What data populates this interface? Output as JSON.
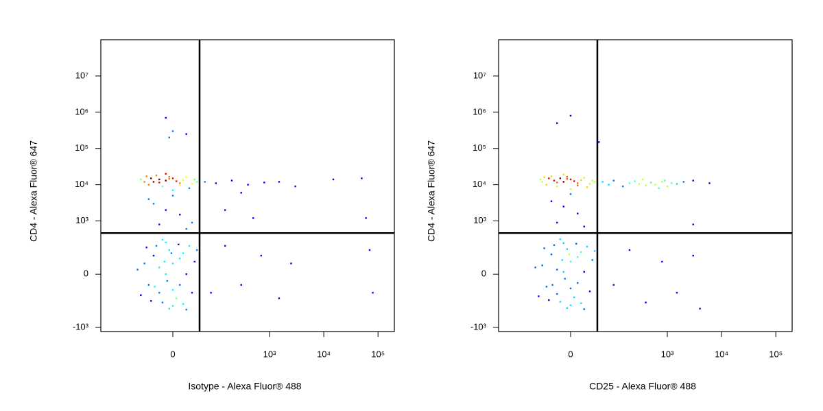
{
  "chart_data": [
    {
      "type": "scatter",
      "xlabel": "Isotype - Alexa Fluor® 488",
      "ylabel": "CD4 - Alexa Fluor® 647",
      "xscale": "biexponential",
      "yscale": "biexponential",
      "xlim": [
        -350,
        200000
      ],
      "ylim": [
        -1300,
        100000000
      ],
      "xticks": [
        0,
        {
          "value": 1000,
          "label": "10³"
        },
        {
          "value": 10000,
          "label": "10⁴"
        },
        {
          "value": 100000,
          "label": "10⁵"
        }
      ],
      "yticks": [
        {
          "value": -1000,
          "label": "-10³"
        },
        0,
        {
          "value": 1000,
          "label": "10³"
        },
        {
          "value": 10000,
          "label": "10⁴"
        },
        {
          "value": 100000,
          "label": "10⁵"
        },
        {
          "value": 1000000,
          "label": "10⁶"
        },
        {
          "value": 10000000,
          "label": "10⁷"
        }
      ],
      "quadrant": {
        "x": 46,
        "y": 460
      },
      "x": [
        -30,
        -20,
        -10,
        0,
        10,
        -40,
        20,
        -15,
        -25,
        5,
        -5,
        15,
        -35,
        30,
        -50,
        25,
        -10,
        0,
        -60,
        35,
        -20,
        -5,
        10,
        -45,
        40,
        -10,
        0,
        -20,
        10,
        -5,
        -30,
        20,
        -15,
        5,
        -25,
        15,
        -40,
        30,
        0,
        -50,
        -10,
        25,
        -35,
        10,
        -20,
        -60,
        35,
        0,
        -5,
        40,
        -70,
        -15,
        15,
        -45,
        20,
        -8,
        -28,
        8,
        -2,
        -12,
        -20,
        10,
        -30,
        0,
        20,
        -10,
        30,
        -40,
        60,
        100,
        200,
        400,
        800,
        1500,
        3000,
        15000,
        50000,
        300,
        80,
        150,
        300,
        700,
        1500,
        2500,
        60000,
        70000,
        80000,
        -10,
        0,
        20,
        -5,
        150,
        500
      ],
      "y": [
        12000,
        14000,
        13000,
        15000,
        11000,
        10000,
        16000,
        9000,
        18000,
        12500,
        14500,
        13500,
        15000,
        10500,
        12000,
        8000,
        20000,
        7000,
        14000,
        14000,
        11500,
        16500,
        9500,
        17000,
        12000,
        0,
        50,
        -100,
        -50,
        150,
        100,
        0,
        -200,
        -150,
        200,
        120,
        -50,
        -100,
        -250,
        50,
        250,
        200,
        -180,
        80,
        30,
        -120,
        60,
        -80,
        -300,
        150,
        20,
        300,
        -220,
        180,
        -320,
        -30,
        -60,
        220,
        120,
        60,
        800,
        1500,
        3000,
        5000,
        600,
        2000,
        900,
        4000,
        12000,
        11000,
        13000,
        10000,
        11500,
        12000,
        9000,
        14000,
        15000,
        6000,
        -100,
        200,
        -50,
        100,
        -150,
        50,
        1200,
        150,
        -100,
        700000,
        300000,
        250000,
        200000,
        2000,
        1200
      ]
    },
    {
      "type": "scatter",
      "xlabel": "CD25 - Alexa Fluor® 488",
      "ylabel": "CD4 - Alexa Fluor® 647",
      "xscale": "biexponential",
      "yscale": "biexponential",
      "xlim": [
        -350,
        200000
      ],
      "ylim": [
        -1300,
        100000000
      ],
      "xticks": [
        0,
        {
          "value": 1000,
          "label": "10³"
        },
        {
          "value": 10000,
          "label": "10⁴"
        },
        {
          "value": 100000,
          "label": "10⁵"
        }
      ],
      "yticks": [
        {
          "value": -1000,
          "label": "-10³"
        },
        0,
        {
          "value": 1000,
          "label": "10³"
        },
        {
          "value": 10000,
          "label": "10⁴"
        },
        {
          "value": 100000,
          "label": "10⁵"
        },
        {
          "value": 1000000,
          "label": "10⁶"
        },
        {
          "value": 10000000,
          "label": "10⁷"
        }
      ],
      "quadrant": {
        "x": 46,
        "y": 460
      },
      "x": [
        -25,
        -15,
        -10,
        0,
        10,
        -40,
        20,
        -20,
        -30,
        5,
        -5,
        15,
        -35,
        30,
        -50,
        25,
        -10,
        0,
        -55,
        35,
        -20,
        -5,
        10,
        -45,
        40,
        60,
        80,
        100,
        150,
        200,
        250,
        300,
        400,
        500,
        600,
        800,
        1000,
        1200,
        1500,
        2000,
        700,
        350,
        900,
        3000,
        6000,
        -10,
        0,
        -20,
        10,
        -5,
        -30,
        20,
        -15,
        5,
        -25,
        15,
        -40,
        30,
        0,
        -50,
        -10,
        25,
        -35,
        10,
        -20,
        -60,
        35,
        0,
        -5,
        40,
        -70,
        -15,
        15,
        -45,
        20,
        -8,
        -28,
        8,
        -2,
        -12,
        -20,
        10,
        -30,
        0,
        20,
        -10,
        100,
        200,
        400,
        800,
        1500,
        3000,
        4000,
        -20,
        0,
        50,
        3000
      ],
      "y": [
        13000,
        15000,
        12000,
        14000,
        11000,
        10000,
        15500,
        9000,
        17000,
        12500,
        14500,
        13500,
        15000,
        10500,
        12000,
        8500,
        19000,
        7500,
        14000,
        13000,
        11500,
        16500,
        9500,
        16000,
        12000,
        12000,
        10000,
        13000,
        9000,
        11000,
        12500,
        10500,
        9500,
        11500,
        10000,
        12000,
        9000,
        11000,
        10500,
        12000,
        8000,
        14000,
        13000,
        13000,
        11000,
        10,
        60,
        -110,
        -40,
        160,
        110,
        10,
        -190,
        -140,
        210,
        130,
        -60,
        -90,
        -240,
        40,
        240,
        190,
        -170,
        90,
        20,
        -130,
        70,
        -70,
        -290,
        140,
        30,
        310,
        -210,
        170,
        -310,
        -20,
        -50,
        230,
        110,
        70,
        900,
        1600,
        3500,
        5500,
        700,
        2500,
        -50,
        150,
        -200,
        60,
        -100,
        100,
        -300,
        500000,
        800000,
        150000,
        800
      ]
    }
  ]
}
